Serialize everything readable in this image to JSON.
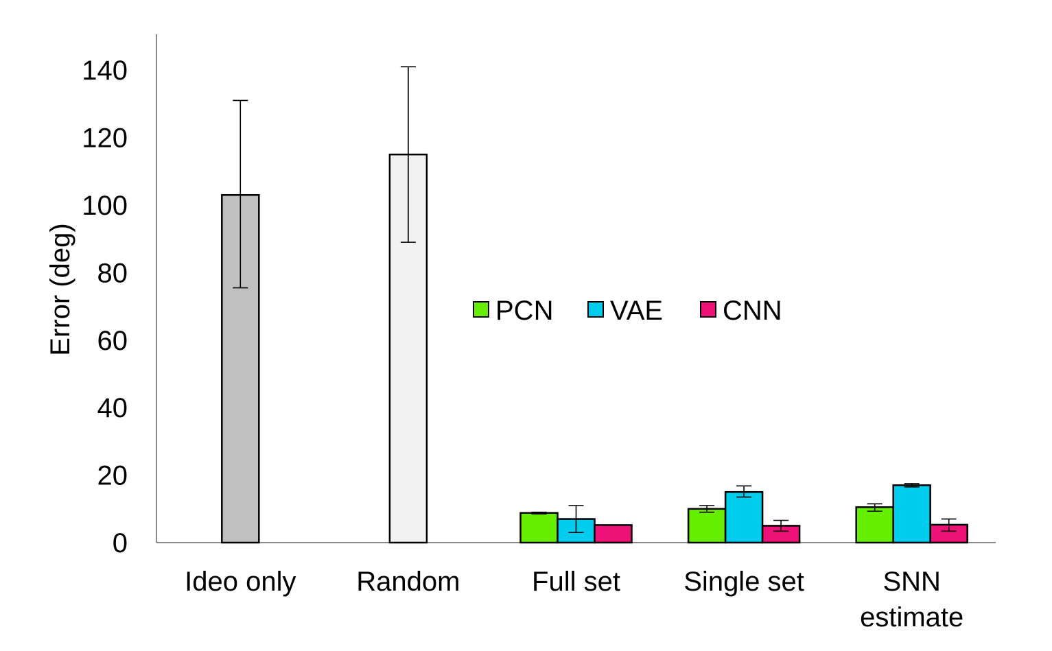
{
  "chart_data": {
    "type": "bar",
    "title": "",
    "xlabel": "",
    "ylabel": "Error (deg)",
    "ylim": [
      0,
      150
    ],
    "yticks": [
      0,
      20,
      40,
      60,
      80,
      100,
      120,
      140
    ],
    "grid": false,
    "legend_position": "center",
    "categories": [
      {
        "label_lines": [
          "Ideo only"
        ]
      },
      {
        "label_lines": [
          "Random"
        ]
      },
      {
        "label_lines": [
          "Full set"
        ]
      },
      {
        "label_lines": [
          "Single set"
        ]
      },
      {
        "label_lines": [
          "SNN",
          "estimate"
        ]
      }
    ],
    "single_bars": [
      {
        "category": 0,
        "value": 103,
        "err_low": 75.5,
        "err_high": 131,
        "color": "#c0c0c0"
      },
      {
        "category": 1,
        "value": 115,
        "err_low": 89,
        "err_high": 141,
        "color": "#f2f2f2"
      }
    ],
    "series": [
      {
        "name": "PCN",
        "color": "#66ee00",
        "values": [
          null,
          null,
          8.8,
          10,
          10.5
        ],
        "err_low": [
          null,
          null,
          8.5,
          9,
          9.3
        ],
        "err_high": [
          null,
          null,
          9,
          11,
          11.5
        ]
      },
      {
        "name": "VAE",
        "color": "#00ccee",
        "values": [
          null,
          null,
          7,
          15,
          17
        ],
        "err_low": [
          null,
          null,
          3,
          13.5,
          16.5
        ],
        "err_high": [
          null,
          null,
          11,
          16.8,
          17.5
        ]
      },
      {
        "name": "CNN",
        "color": "#ee1177",
        "values": [
          null,
          null,
          5.2,
          5,
          5.3
        ],
        "err_low": [
          null,
          null,
          5.2,
          3.4,
          3.4
        ],
        "err_high": [
          null,
          null,
          5.2,
          6.6,
          7
        ]
      }
    ]
  }
}
